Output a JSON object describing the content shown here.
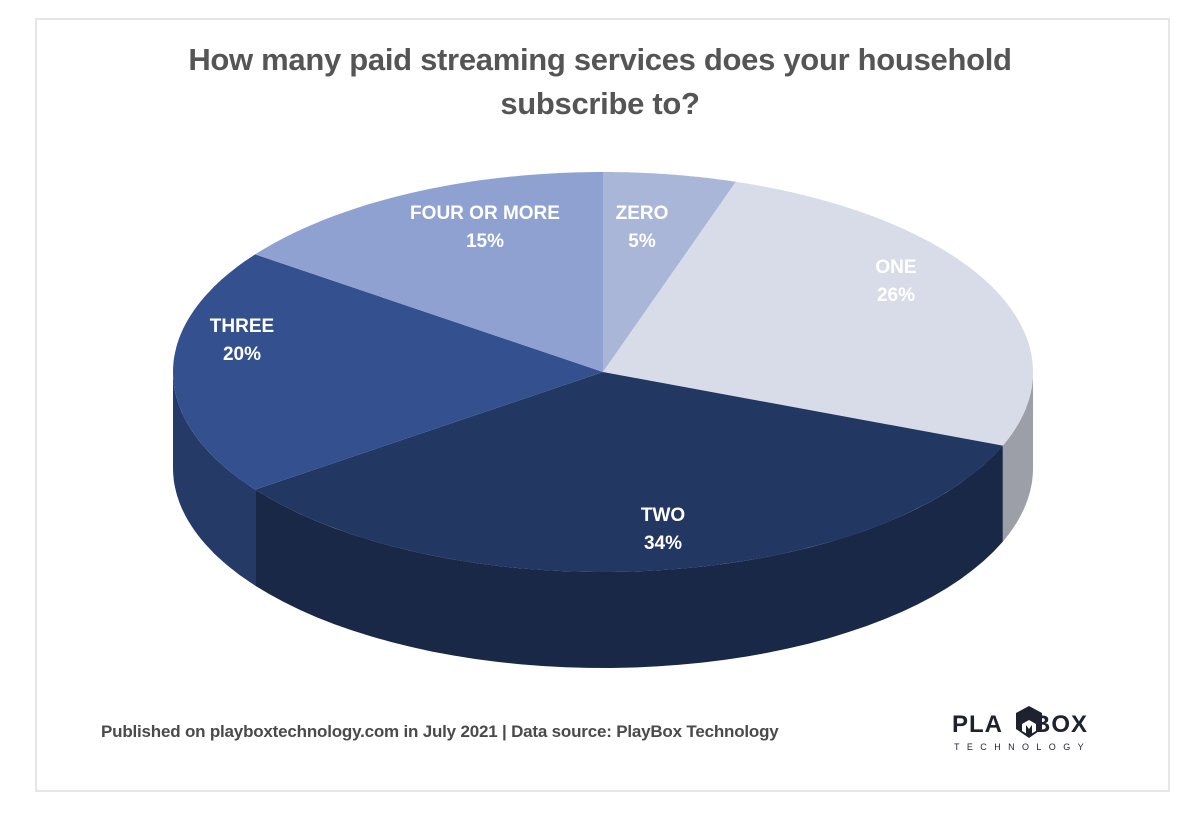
{
  "title": {
    "line1": "How many paid streaming services does your household",
    "line2": "subscribe to?"
  },
  "footer": {
    "text": "Published on playboxtechnology.com in July 2021 | Data source: PlayBox Technology"
  },
  "logo": {
    "word_left": "PLA",
    "word_right": "BOX",
    "subtitle": "TECHNOLOGY"
  },
  "slices": [
    {
      "name": "ZERO",
      "pct": "5%",
      "color": "#a9b6d8"
    },
    {
      "name": "ONE",
      "pct": "26%",
      "color": "#d8dce9"
    },
    {
      "name": "TWO",
      "pct": "34%",
      "color": "#233763"
    },
    {
      "name": "THREE",
      "pct": "20%",
      "color": "#34508f"
    },
    {
      "name": "FOUR OR MORE",
      "pct": "15%",
      "color": "#8ea1d0"
    }
  ],
  "chart_data": {
    "type": "pie",
    "title": "How many paid streaming services does your household subscribe to?",
    "categories": [
      "ZERO",
      "ONE",
      "TWO",
      "THREE",
      "FOUR OR MORE"
    ],
    "values": [
      5,
      26,
      34,
      20,
      15
    ],
    "unit": "%",
    "style": "3d-pie",
    "colors": [
      "#a9b6d8",
      "#d8dce9",
      "#233763",
      "#34508f",
      "#8ea1d0"
    ],
    "legend": "none (labels on slices)",
    "source": "Published on playboxtechnology.com in July 2021 | Data source: PlayBox Technology"
  }
}
